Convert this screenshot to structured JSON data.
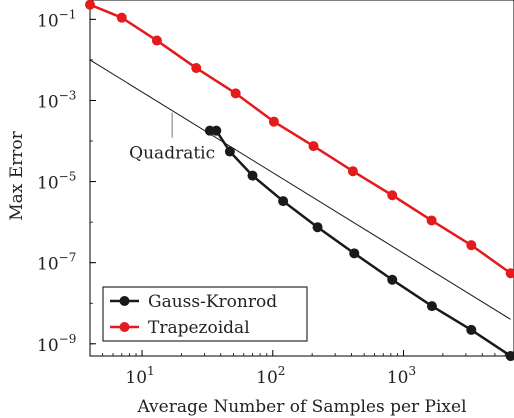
{
  "chart_data": {
    "type": "line",
    "xlabel": "Average Number of Samples per Pixel",
    "ylabel": "Max Error",
    "xscale": "log",
    "yscale": "log",
    "xlim": [
      4,
      7000
    ],
    "ylim": [
      5e-10,
      0.3
    ],
    "x_ticks": [
      {
        "base": "10",
        "exp": "1",
        "value": 10
      },
      {
        "base": "10",
        "exp": "2",
        "value": 100
      },
      {
        "base": "10",
        "exp": "3",
        "value": 1000
      }
    ],
    "y_ticks": [
      {
        "base": "10",
        "exp": "−1",
        "value": 0.1
      },
      {
        "base": "10",
        "exp": "−3",
        "value": 0.001
      },
      {
        "base": "10",
        "exp": "−5",
        "value": 1e-05
      },
      {
        "base": "10",
        "exp": "−7",
        "value": 1e-07
      },
      {
        "base": "10",
        "exp": "−9",
        "value": 1e-09
      }
    ],
    "grid": false,
    "legend_position": "bottom-left",
    "series": [
      {
        "name": "Gauss-Kronrod",
        "color": "#1a1a1a",
        "marker": "circle",
        "points": [
          [
            33,
            0.00018
          ],
          [
            37,
            0.00018
          ],
          [
            47,
            5.5e-05
          ],
          [
            70,
            1.4e-05
          ],
          [
            120,
            3.3e-06
          ],
          [
            220,
            7.5e-07
          ],
          [
            420,
            1.7e-07
          ],
          [
            820,
            3.8e-08
          ],
          [
            1650,
            8.5e-09
          ],
          [
            3300,
            2.2e-09
          ],
          [
            6600,
            5e-10
          ]
        ]
      },
      {
        "name": "Trapezoidal",
        "color": "#e41a1c",
        "marker": "circle",
        "points": [
          [
            4,
            0.23
          ],
          [
            7,
            0.11
          ],
          [
            13,
            0.03
          ],
          [
            26,
            0.0063
          ],
          [
            52,
            0.0015
          ],
          [
            102,
            0.0003
          ],
          [
            205,
            7.5e-05
          ],
          [
            410,
            1.8e-05
          ],
          [
            820,
            4.6e-06
          ],
          [
            1640,
            1.1e-06
          ],
          [
            3300,
            2.7e-07
          ],
          [
            6600,
            5.5e-08
          ]
        ]
      }
    ],
    "reference_line": {
      "label": "Quadratic",
      "color": "#1a1a1a",
      "points": [
        [
          4,
          0.01
        ],
        [
          6600,
          4e-09
        ]
      ]
    }
  }
}
